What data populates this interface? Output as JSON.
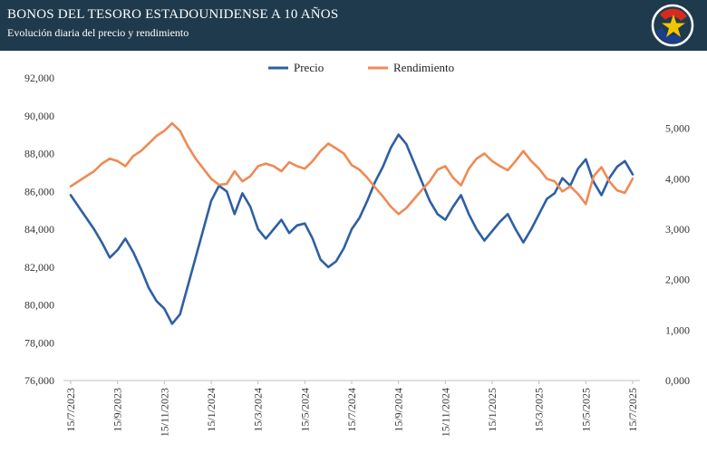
{
  "header": {
    "title": "BONOS DEL TESORO ESTADOUNIDENSE A 10 AÑOS",
    "subtitle": "Evolución diaria del precio y rendimiento"
  },
  "colors": {
    "header_bg": "#1f3a4d",
    "precio": "#2e5fa3",
    "rendimiento": "#ee8a55",
    "logo_blue": "#1b3f8f",
    "logo_red": "#d52b1e",
    "logo_star": "#f2c500"
  },
  "chart_data": {
    "type": "line",
    "legend_position": "top-center",
    "grid": false,
    "x_tick_labels": [
      "15/7/2023",
      "15/9/2023",
      "15/11/2023",
      "15/1/2024",
      "15/3/2024",
      "15/5/2024",
      "15/7/2024",
      "15/9/2024",
      "15/11/2024",
      "15/1/2025",
      "15/3/2025",
      "15/5/2025",
      "15/7/2025"
    ],
    "y_left": {
      "ylim": [
        76000,
        92000
      ],
      "tick_labels": [
        "76,000",
        "78,000",
        "80,000",
        "82,000",
        "84,000",
        "86,000",
        "88,000",
        "90,000",
        "92,000"
      ]
    },
    "y_right": {
      "ylim": [
        0,
        6000
      ],
      "tick_labels": [
        "0,000",
        "1,000",
        "2,000",
        "3,000",
        "4,000",
        "5,000"
      ]
    },
    "series": [
      {
        "name": "Precio",
        "axis": "left",
        "values": [
          85800,
          85200,
          84600,
          84000,
          83300,
          82500,
          82900,
          83500,
          82800,
          81900,
          80900,
          80200,
          79800,
          79000,
          79500,
          81000,
          82500,
          84000,
          85500,
          86300,
          86000,
          84800,
          85900,
          85200,
          84000,
          83500,
          84000,
          84500,
          83800,
          84200,
          84300,
          83500,
          82400,
          82000,
          82300,
          83000,
          84000,
          84600,
          85500,
          86500,
          87300,
          88300,
          89000,
          88500,
          87500,
          86500,
          85500,
          84800,
          84500,
          85200,
          85800,
          84800,
          84000,
          83400,
          83900,
          84400,
          84800,
          84000,
          83300,
          84000,
          84800,
          85600,
          85900,
          86700,
          86300,
          87200,
          87700,
          86500,
          85800,
          86700,
          87300,
          87600,
          86900
        ],
        "x_index_range": [
          0,
          72
        ]
      },
      {
        "name": "Rendimiento",
        "axis": "right",
        "values": [
          3850,
          3950,
          4050,
          4150,
          4300,
          4400,
          4350,
          4250,
          4450,
          4550,
          4700,
          4850,
          4950,
          5100,
          4950,
          4650,
          4400,
          4200,
          4000,
          3880,
          3900,
          4150,
          3950,
          4050,
          4250,
          4300,
          4250,
          4150,
          4330,
          4250,
          4200,
          4350,
          4550,
          4700,
          4600,
          4500,
          4270,
          4180,
          4020,
          3830,
          3650,
          3450,
          3300,
          3420,
          3600,
          3780,
          3950,
          4180,
          4250,
          4020,
          3870,
          4200,
          4400,
          4500,
          4350,
          4250,
          4170,
          4350,
          4550,
          4350,
          4200,
          4000,
          3950,
          3750,
          3850,
          3700,
          3500,
          4050,
          4230,
          3950,
          3770,
          3720,
          4000
        ],
        "x_index_range": [
          0,
          72
        ]
      }
    ]
  }
}
